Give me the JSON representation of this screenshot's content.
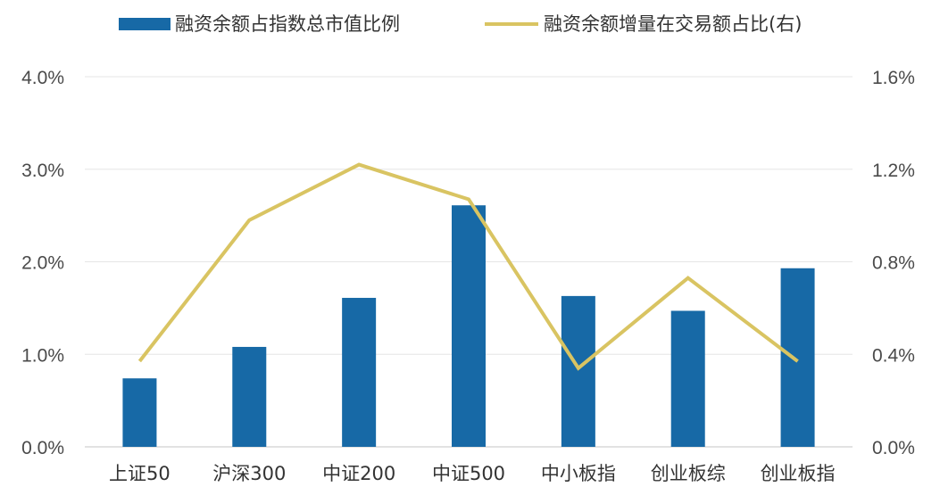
{
  "chart_data": {
    "type": "bar",
    "categories": [
      "上证50",
      "沪深300",
      "中证200",
      "中证500",
      "中小板指",
      "创业板综",
      "创业板指"
    ],
    "series": [
      {
        "name": "融资余额占指数总市值比例",
        "type": "bar",
        "axis": "left",
        "color": "#1769A6",
        "values": [
          0.74,
          1.08,
          1.61,
          2.61,
          1.63,
          1.47,
          1.93
        ]
      },
      {
        "name": "融资余额增量在交易额占比(右)",
        "type": "line",
        "axis": "right",
        "color": "#D9C462",
        "values": [
          0.37,
          0.98,
          1.22,
          1.07,
          0.34,
          0.73,
          0.37
        ]
      }
    ],
    "y_left": {
      "ylim": [
        0,
        4
      ],
      "ticks": [
        0,
        1,
        2,
        3,
        4
      ],
      "tick_labels": [
        "0.0%",
        "1.0%",
        "2.0%",
        "3.0%",
        "4.0%"
      ]
    },
    "y_right": {
      "ylim": [
        0,
        1.6
      ],
      "ticks": [
        0,
        0.4,
        0.8,
        1.2,
        1.6
      ],
      "tick_labels": [
        "0.0%",
        "0.4%",
        "0.8%",
        "1.2%",
        "1.6%"
      ]
    },
    "grid": true,
    "legend_position": "top"
  }
}
